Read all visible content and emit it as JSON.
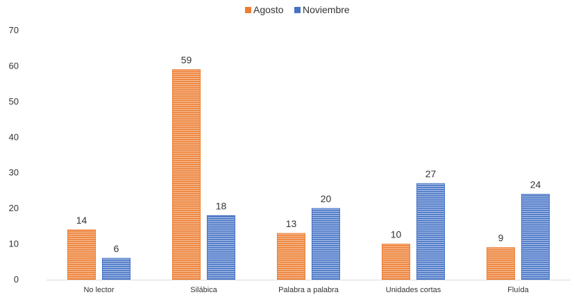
{
  "chart_data": {
    "type": "bar",
    "categories": [
      "No lector",
      "Silábica",
      "Palabra a palabra",
      "Unidades cortas",
      "Fluída"
    ],
    "series": [
      {
        "name": "Agosto",
        "values": [
          14,
          59,
          13,
          10,
          9
        ],
        "color": "#ED7D31"
      },
      {
        "name": "Noviembre",
        "values": [
          6,
          18,
          20,
          27,
          24
        ],
        "color": "#4472C4"
      }
    ],
    "ylim": [
      0,
      70
    ],
    "yticks": [
      0,
      10,
      20,
      30,
      40,
      50,
      60,
      70
    ],
    "grid": false,
    "legend_position": "top-center",
    "data_labels": true,
    "title": "",
    "xlabel": "",
    "ylabel": ""
  }
}
